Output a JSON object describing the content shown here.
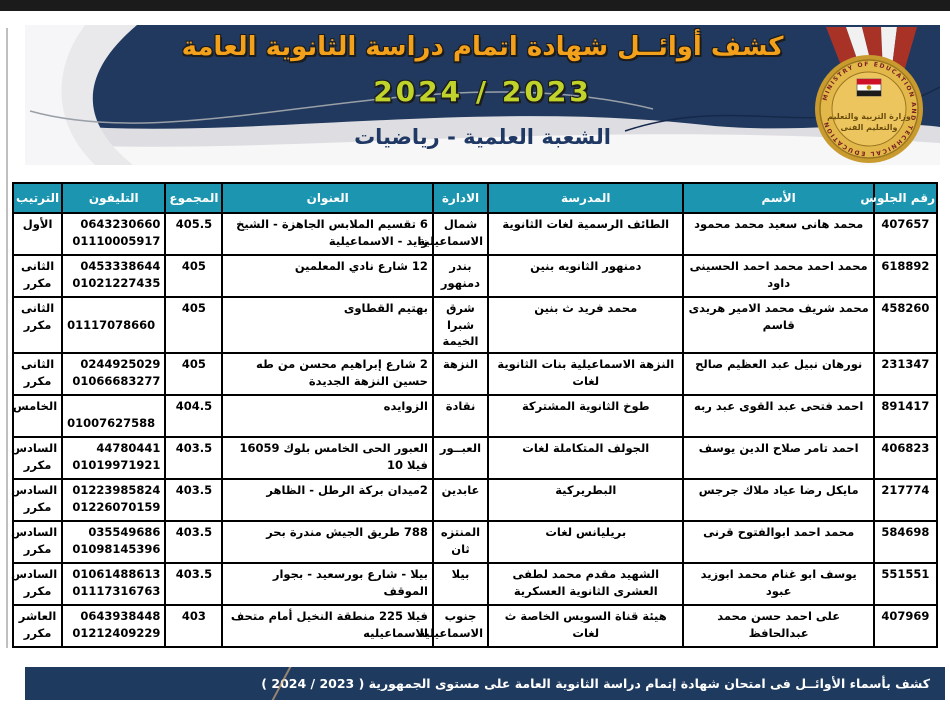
{
  "banner": {
    "title": "كشف  أوائــل شهادة اتمام دراسة الثانوية العامة",
    "academic_year": "2024 / 2023",
    "section": "الشعبة العلمية -  رياضيات",
    "logo": {
      "rim_text": "MINISTRY OF EDUCATION AND TECHNICAL EDUCATION",
      "arabic_line1": "وزارة التربية والتعليم",
      "arabic_line2": "والتعليم الفنى"
    },
    "colors": {
      "banner_bg": "#21395E",
      "title": "#F3A01B",
      "year": "#BFD32B",
      "section": "#1F3864"
    }
  },
  "table": {
    "header_bg": "#1C95B0",
    "columns": [
      "رقم الجلوس",
      "الأسم",
      "المدرسة",
      "الادارة",
      "العنوان",
      "المجموع",
      "التليفون",
      "الترتيب"
    ],
    "rows": [
      {
        "seat": "407657",
        "name": "محمد هانى سعيد محمد محمود",
        "school": "الطائف الرسمية لغات الثانوية",
        "district": "شمال الاسماعيلية",
        "address": "6 تقسيم الملابس الجاهزة - الشيخ زايد - الاسماعيلية",
        "total": "405.5",
        "phones": [
          "0643230660",
          "01110005917"
        ],
        "rank": [
          "الأول"
        ]
      },
      {
        "seat": "618892",
        "name": "محمد احمد محمد  احمد الحسينى داود",
        "school": "دمنهور الثانويه بنين",
        "district": "بندر دمنهور",
        "address": "12 شارع نادي المعلمين",
        "total": "405",
        "phones": [
          "0453338644",
          "01021227435"
        ],
        "rank": [
          "الثانى",
          "مكرر"
        ]
      },
      {
        "seat": "458260",
        "name": "محمد شريف محمد الامير هريدى قاسم",
        "school": "محمد فريد ث بنين",
        "district": "شرق شبرا الخيمة",
        "address": "بهتيم القطاوى",
        "total": "405",
        "phones": [
          "",
          "01117078660"
        ],
        "rank": [
          "الثانى",
          "مكرر"
        ]
      },
      {
        "seat": "231347",
        "name": "نورهان نبيل عبد العظيم صالح",
        "school": "النزهة الاسماعيلية بنات الثانوية لغات",
        "district": "النزهة",
        "address": "2 شارع إبراهيم محسن من طه حسين النزهة الجديدة",
        "total": "405",
        "phones": [
          "0244925029",
          "01066683277"
        ],
        "rank": [
          "الثانى",
          "مكرر"
        ]
      },
      {
        "seat": "891417",
        "name": "احمد فتحى عبد القوى عبد ربه",
        "school": "طوخ الثانوية المشتركة",
        "district": "نقادة",
        "address": "الزوايده",
        "total": "404.5",
        "phones": [
          "",
          "01007627588"
        ],
        "rank": [
          "الخامس"
        ]
      },
      {
        "seat": "406823",
        "name": "احمد تامر صلاح الدين يوسف",
        "school": "الجولف المتكاملة لغات",
        "district": "العبــور",
        "address": "العبور الحى الخامس بلوك 16059 فيلا 10",
        "total": "403.5",
        "phones": [
          "44780441",
          "01019971921"
        ],
        "rank": [
          "السادس",
          "مكرر"
        ]
      },
      {
        "seat": "217774",
        "name": "مايكل رضا عياد ملاك جرجس",
        "school": "البطريركية",
        "district": "عابدين",
        "address": "2ميدان بركة الرطل - الظاهر",
        "total": "403.5",
        "phones": [
          "01223985824",
          "01226070159"
        ],
        "rank": [
          "السادس",
          "مكرر"
        ]
      },
      {
        "seat": "584698",
        "name": "محمد احمد ابوالفتوح قرنى",
        "school": "بريليانس  لغات",
        "district": "المنتزه ثان",
        "address": "788 طريق الجيش مندرة بحر",
        "total": "403.5",
        "phones": [
          "035549686",
          "01098145396"
        ],
        "rank": [
          "السادس",
          "مكرر"
        ]
      },
      {
        "seat": "551551",
        "name": "يوسف ابو غنام محمد ابوزيد عبود",
        "school": "الشهيد مقدم محمد لطفى العشرى الثانوية العسكرية",
        "district": "بيلا",
        "address": "بيلا - شارع بورسعيد - بجوار الموقف",
        "total": "403.5",
        "phones": [
          "01061488613",
          "01117316763"
        ],
        "rank": [
          "السادس",
          "مكرر"
        ]
      },
      {
        "seat": "407969",
        "name": "على احمد حسن محمد عبدالحافظ",
        "school": "هيئة قناة السويس الخاصة ث لغات",
        "district": "جنوب الاسماعيلية",
        "address": "فيلا 225 منطقة النخيل أمام متحف الاسماعيليه",
        "total": "403",
        "phones": [
          "0643938448",
          "01212409229"
        ],
        "rank": [
          "العاشر",
          "مكرر"
        ]
      }
    ]
  },
  "footer": {
    "text": "كشف بأسماء الأوائــل فى امتحان شهادة إتمام دراسة الثانوية العامة على مستوى الجمهورية ( 2023 / 2024 )"
  }
}
